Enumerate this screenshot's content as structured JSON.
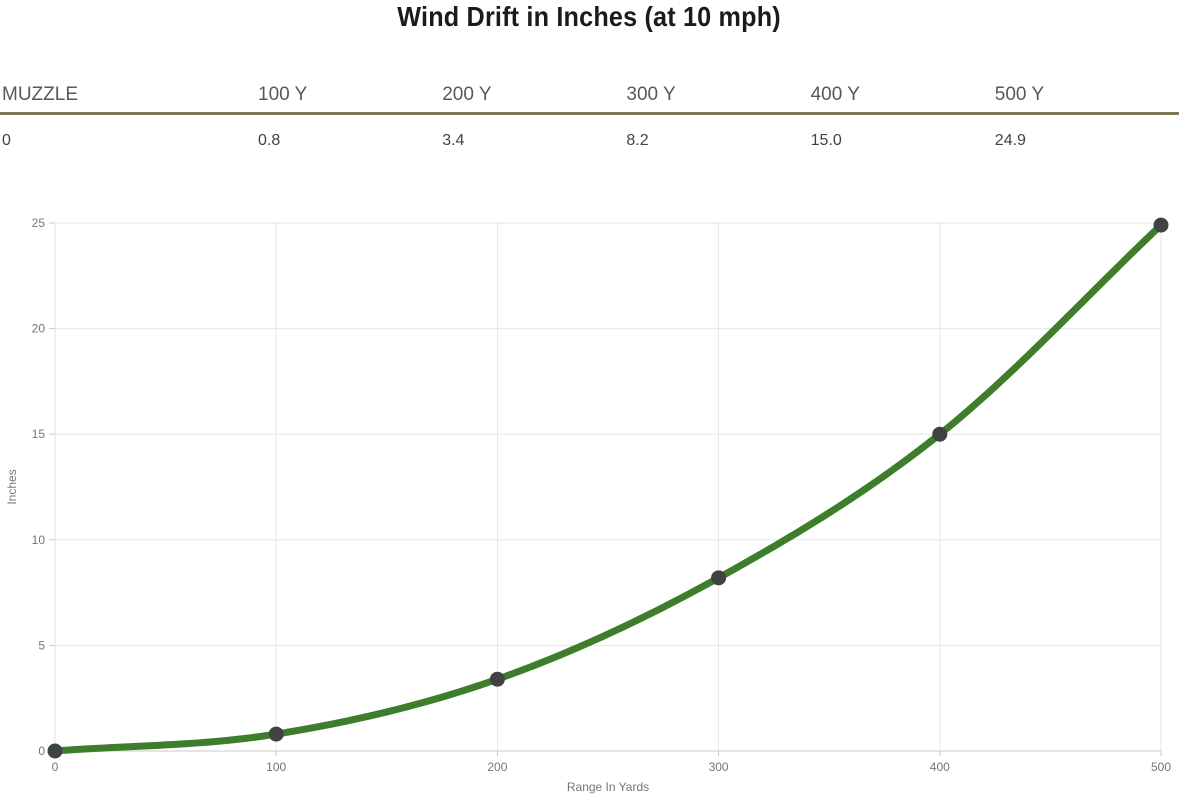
{
  "page": {
    "title": "Wind Drift in Inches (at 10 mph)"
  },
  "table": {
    "columns": [
      "MUZZLE",
      "100 Y",
      "200 Y",
      "300 Y",
      "400 Y",
      "500 Y"
    ],
    "values": [
      "0",
      "0.8",
      "3.4",
      "8.2",
      "15.0",
      "24.9"
    ]
  },
  "chart_data": {
    "type": "line",
    "series": [
      {
        "name": "Wind Drift",
        "x": [
          0,
          100,
          200,
          300,
          400,
          500
        ],
        "values": [
          0,
          0.8,
          3.4,
          8.2,
          15.0,
          24.9
        ]
      }
    ],
    "title": "Wind Drift in Inches (at 10 mph)",
    "xlabel": "Range In Yards",
    "ylabel": "Inches",
    "xlim": [
      0,
      500
    ],
    "ylim": [
      0,
      25
    ],
    "x_ticks": [
      0,
      100,
      200,
      300,
      400,
      500
    ],
    "y_ticks": [
      0,
      5,
      10,
      15,
      20,
      25
    ],
    "grid": true,
    "legend": false,
    "curve": "monotone",
    "line_color": "#3e7d2c",
    "marker_color": "#3f4442"
  },
  "colors": {
    "divider": "#7d7757",
    "grid": "#e6e6e6",
    "axis": "#c9c9c9",
    "tick_label": "#757575",
    "header_text": "#54595f",
    "value_text": "#3f4449",
    "title_text": "#1b1b1b",
    "background": "#ffffff"
  }
}
